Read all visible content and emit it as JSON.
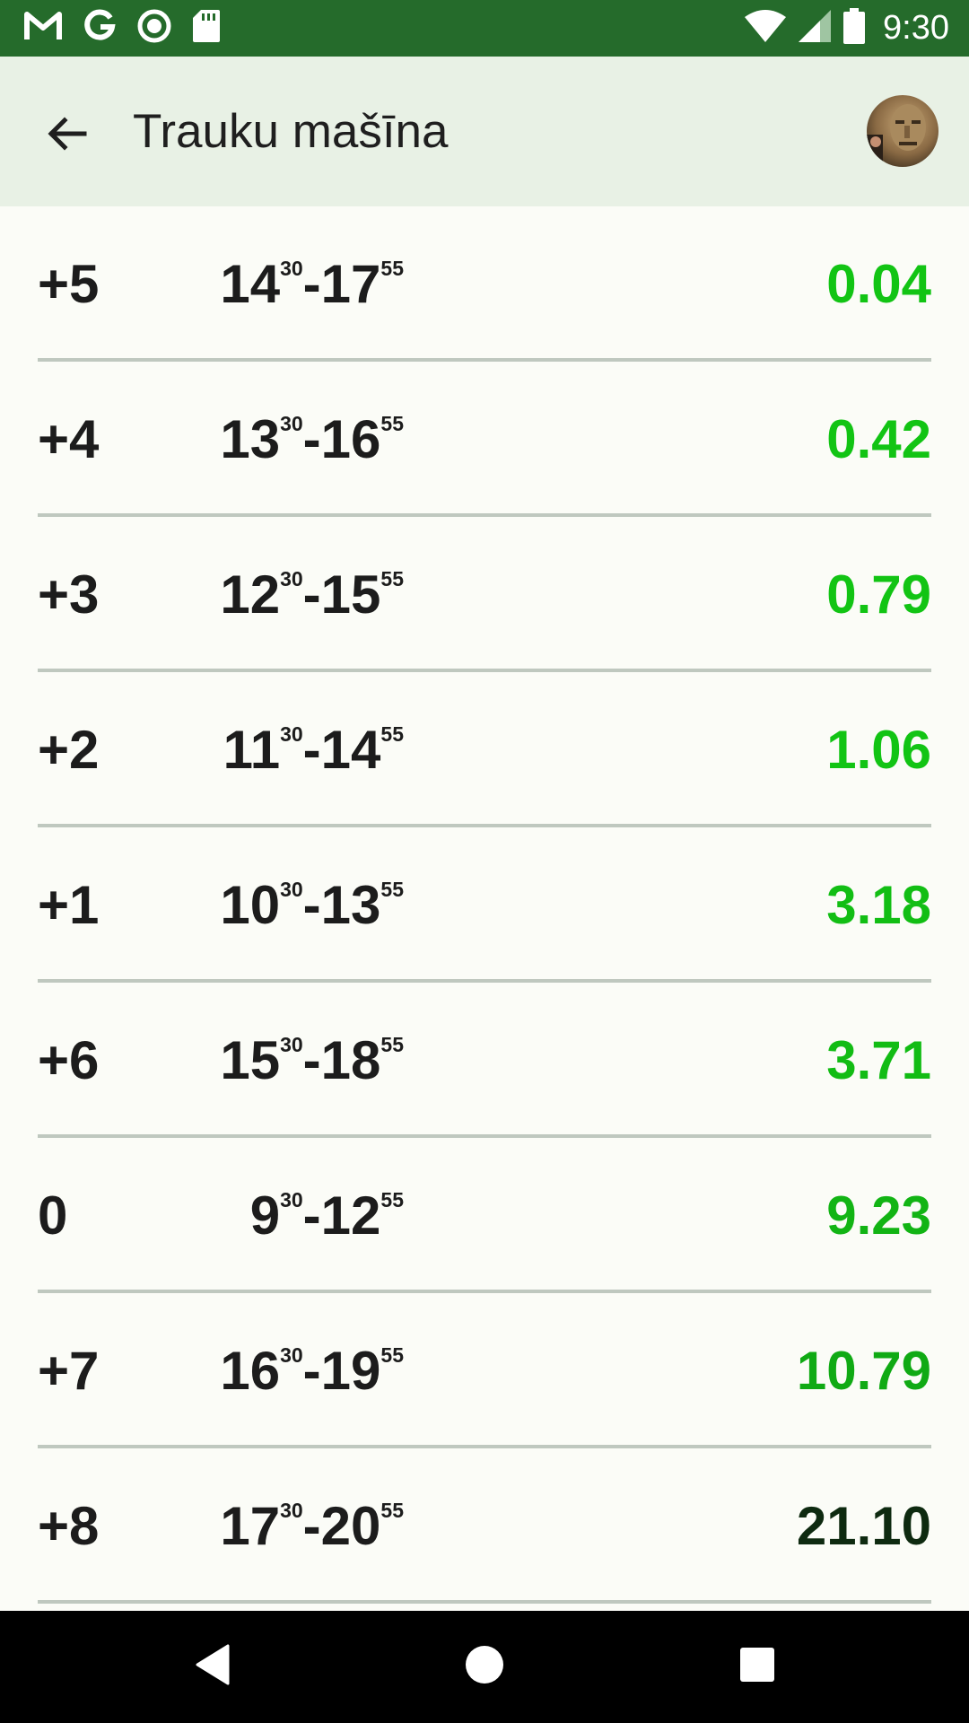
{
  "status_bar": {
    "time": "9:30",
    "notification_icons": [
      "gmail-icon",
      "google-icon",
      "record-icon",
      "sd-card-icon"
    ],
    "system_icons": [
      "wifi-icon",
      "signal-icon",
      "battery-icon"
    ]
  },
  "app_bar": {
    "title": "Trauku mašīna",
    "back_icon": "arrow-back-icon",
    "avatar_icon": "avatar-photo"
  },
  "rows": [
    {
      "offset": "+5",
      "start_h": "14",
      "start_m": "30",
      "end_h": "17",
      "end_m": "55",
      "price": "0.04",
      "color": "#12c414"
    },
    {
      "offset": "+4",
      "start_h": "13",
      "start_m": "30",
      "end_h": "16",
      "end_m": "55",
      "price": "0.42",
      "color": "#12c414"
    },
    {
      "offset": "+3",
      "start_h": "12",
      "start_m": "30",
      "end_h": "15",
      "end_m": "55",
      "price": "0.79",
      "color": "#12c414"
    },
    {
      "offset": "+2",
      "start_h": "11",
      "start_m": "30",
      "end_h": "14",
      "end_m": "55",
      "price": "1.06",
      "color": "#12c414"
    },
    {
      "offset": "+1",
      "start_h": "10",
      "start_m": "30",
      "end_h": "13",
      "end_m": "55",
      "price": "3.18",
      "color": "#12be14"
    },
    {
      "offset": "+6",
      "start_h": "15",
      "start_m": "30",
      "end_h": "18",
      "end_m": "55",
      "price": "3.71",
      "color": "#12bc14"
    },
    {
      "offset": "0",
      "start_h": "9",
      "start_m": "30",
      "end_h": "12",
      "end_m": "55",
      "price": "9.23",
      "color": "#12b414"
    },
    {
      "offset": "+7",
      "start_h": "16",
      "start_m": "30",
      "end_h": "19",
      "end_m": "55",
      "price": "10.79",
      "color": "#10aa14"
    },
    {
      "offset": "+8",
      "start_h": "17",
      "start_m": "30",
      "end_h": "20",
      "end_m": "55",
      "price": "21.10",
      "color": "#0e2a10"
    }
  ],
  "nav_bar": {
    "buttons": [
      "back-triangle-icon",
      "home-circle-icon",
      "recents-square-icon"
    ]
  },
  "colors": {
    "status_bar": "#256b2b",
    "app_bar": "#e8f1e5",
    "background": "#fbfcf7",
    "divider": "#bfc8bf"
  }
}
